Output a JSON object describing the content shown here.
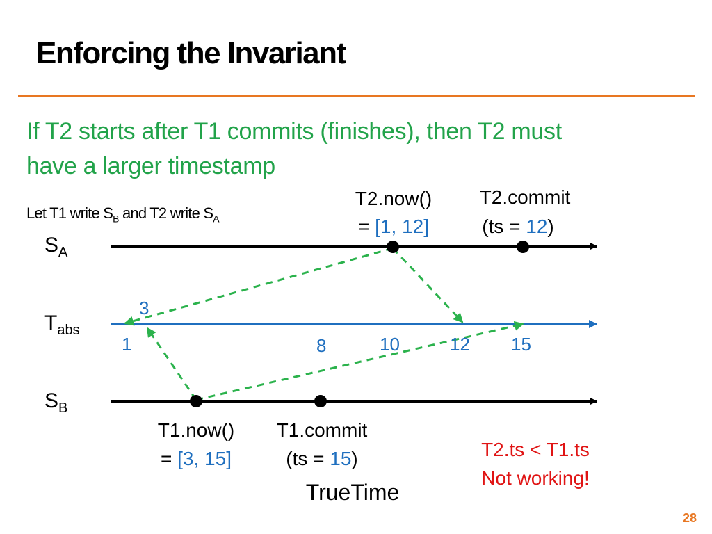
{
  "title": "Enforcing the Invariant",
  "intro_line1": "If T2 starts after T1 commits (finishes), then T2 must",
  "intro_line2": "have a larger timestamp",
  "let_text": {
    "part1": "Let T1 write S",
    "sub1": "B",
    "part2": " and T2 write S",
    "sub2": "A"
  },
  "rows": {
    "sa": {
      "main": "S",
      "sub": "A"
    },
    "tabs": {
      "main": "T",
      "sub": "abs"
    },
    "sb": {
      "main": "S",
      "sub": "B"
    }
  },
  "t2_now": {
    "line1": "T2.now()",
    "eq": "= ",
    "value": "[1, 12]"
  },
  "t2_commit": {
    "line1": "T2.commit",
    "open": "(ts = ",
    "value": "12",
    "close": ")"
  },
  "t1_now": {
    "line1": "T1.now()",
    "eq": "= ",
    "value": "[3, 15]"
  },
  "t1_commit": {
    "line1": "T1.commit",
    "open": "(ts = ",
    "value": "15",
    "close": ")"
  },
  "ticks": {
    "t3": "3",
    "t1": "1",
    "t8": "8",
    "t10": "10",
    "t12": "12",
    "t15": "15"
  },
  "truetime": "TrueTime",
  "warning": {
    "line1": "T2.ts < T1.ts",
    "line2": "Not working!"
  },
  "page_number": "28",
  "colors": {
    "accent_orange": "#e87722",
    "intro_green": "#22a34a",
    "timeline_blue": "#1f6fbf",
    "arrow_green": "#2bb24c",
    "warning_red": "#e01414"
  }
}
